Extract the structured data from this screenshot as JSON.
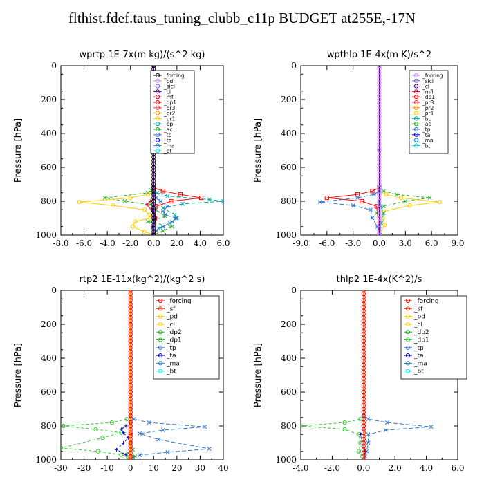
{
  "title": "flthist.fdef.taus_tuning_clubb_c11p  BUDGET at255E,-17N",
  "chart_data": [
    {
      "type": "line",
      "title": "wprtp  1E-7x(m kg)/(s^2 kg)",
      "ylabel": "Pressure [hPa]",
      "xlim": [
        -8,
        6
      ],
      "ylim": [
        1000,
        0
      ],
      "xticks": [
        "-8.0",
        "-6.0",
        "-4.0",
        "-2.0",
        "0.0",
        "2.0",
        "4.0",
        "6.0"
      ],
      "xtick_values": [
        -8,
        -6,
        -4,
        -2,
        0,
        2,
        4,
        6
      ],
      "yticks": [
        "0",
        "200",
        "400",
        "600",
        "800",
        "1000"
      ],
      "ytick_values": [
        0,
        200,
        400,
        600,
        800,
        1000
      ],
      "legend": [
        "_forcing",
        "_pd",
        "_sicl",
        "_cl",
        "_mfl",
        "_dp1",
        "_pr3",
        "_pr2",
        "_pr1",
        "_bp",
        "_ac",
        "_tp",
        "_ta",
        "_ma",
        "_bt"
      ],
      "series": [
        {
          "name": "_forcing",
          "color": "#000000",
          "marker": "o",
          "dash": "",
          "x": [
            0,
            0,
            0,
            0,
            0,
            0,
            0,
            0,
            0,
            0,
            0,
            0,
            0
          ],
          "y": [
            0,
            100,
            200,
            300,
            400,
            500,
            600,
            700,
            750,
            800,
            850,
            900,
            1000
          ]
        },
        {
          "name": "_ac",
          "color": "#22aa22",
          "marker": "x",
          "dash": "4,3",
          "x": [
            0,
            -0.2,
            -0.5,
            -4.2,
            -2.5,
            -0.3,
            0.2,
            1.0,
            -0.5,
            1.6,
            0.8,
            0.0
          ],
          "y": [
            720,
            735,
            750,
            780,
            800,
            820,
            850,
            890,
            920,
            950,
            975,
            1000
          ]
        },
        {
          "name": "_pr1",
          "color": "#ffcc00",
          "marker": "o",
          "dash": "",
          "x": [
            0,
            -0.5,
            -2.0,
            -6.4,
            -3.5,
            -0.8,
            -0.4,
            -0.3,
            -1.6,
            -1.8,
            -0.8,
            0.1
          ],
          "y": [
            740,
            760,
            780,
            805,
            825,
            850,
            880,
            900,
            920,
            950,
            980,
            1000
          ]
        },
        {
          "name": "_bp",
          "color": "#00aaaa",
          "marker": "x",
          "dash": "6,3",
          "x": [
            0,
            0.3,
            1.2,
            4.8,
            6.0,
            2.5,
            0.8,
            1.8,
            2.0,
            1.4,
            0.4,
            0.0
          ],
          "y": [
            730,
            750,
            770,
            790,
            800,
            815,
            840,
            880,
            900,
            930,
            960,
            1000
          ]
        },
        {
          "name": "_dp1",
          "color": "#ff0000",
          "marker": "s",
          "dash": "",
          "x": [
            0,
            0.8,
            2.3,
            4.1,
            1.5,
            0.2,
            0.1,
            0.0
          ],
          "y": [
            720,
            740,
            760,
            780,
            800,
            830,
            900,
            1000
          ]
        },
        {
          "name": "_tp",
          "color": "#3377cc",
          "marker": "*",
          "dash": "6,3",
          "x": [
            0,
            0.2,
            0.6,
            1.2,
            0.8,
            1.0,
            1.9,
            1.6,
            0.8,
            0.2,
            0.0
          ],
          "y": [
            760,
            780,
            800,
            830,
            860,
            880,
            900,
            920,
            950,
            975,
            1000
          ]
        },
        {
          "name": "_mfl",
          "color": "#cc0033",
          "marker": "+",
          "dash": "",
          "x": [
            0,
            -0.3,
            -0.6,
            -0.2,
            0.2,
            0.0,
            0.0
          ],
          "y": [
            790,
            800,
            820,
            850,
            900,
            950,
            1000
          ]
        },
        {
          "name": "_pd",
          "color": "#cc88ff",
          "marker": "o",
          "dash": "",
          "x": [
            0,
            0,
            0
          ],
          "y": [
            0,
            500,
            1000
          ]
        },
        {
          "name": "_sicl",
          "color": "#7766cc",
          "marker": "x",
          "dash": "",
          "x": [
            0,
            0,
            0
          ],
          "y": [
            0,
            500,
            1000
          ]
        },
        {
          "name": "_cl",
          "color": "#550088",
          "marker": "o",
          "dash": "",
          "x": [
            0,
            0,
            0
          ],
          "y": [
            0,
            500,
            1000
          ]
        },
        {
          "name": "_ta",
          "color": "#0000cc",
          "marker": "+",
          "dash": "3,3",
          "x": [
            0,
            0.1,
            -0.1,
            0.0
          ],
          "y": [
            850,
            900,
            950,
            1000
          ]
        }
      ]
    },
    {
      "type": "line",
      "title": "wpthlp  1E-4x(m K)/s^2",
      "ylabel": "Pressure [hPa]",
      "xlim": [
        -9,
        9
      ],
      "ylim": [
        1000,
        0
      ],
      "xticks": [
        "-9.0",
        "-6.0",
        "-3.0",
        "0.0",
        "3.0",
        "6.0",
        "9.0"
      ],
      "xtick_values": [
        -9,
        -6,
        -3,
        0,
        3,
        6,
        9
      ],
      "yticks": [
        "0",
        "200",
        "400",
        "600",
        "800",
        "1000"
      ],
      "ytick_values": [
        0,
        200,
        400,
        600,
        800,
        1000
      ],
      "legend": [
        "_forcing",
        "_sicl",
        "_cl",
        "_mfl",
        "_dp1",
        "_pr3",
        "_pr2",
        "_pr1",
        "_bp",
        "_ac",
        "_tp",
        "_ta",
        "_ma",
        "_bt"
      ],
      "series": [
        {
          "name": "_forcing",
          "color": "#cc88ff",
          "marker": "o",
          "dash": "",
          "x": [
            0,
            0,
            0,
            0,
            0,
            0,
            0,
            0,
            0,
            0,
            0,
            0
          ],
          "y": [
            0,
            100,
            200,
            300,
            400,
            500,
            600,
            700,
            750,
            800,
            900,
            1000
          ]
        },
        {
          "name": "_ac",
          "color": "#22aa22",
          "marker": "x",
          "dash": "4,3",
          "x": [
            0,
            0.5,
            2.0,
            5.8,
            3.0,
            0.5,
            -0.3,
            0.2,
            0.0
          ],
          "y": [
            720,
            740,
            760,
            780,
            800,
            830,
            870,
            930,
            1000
          ]
        },
        {
          "name": "_pr1",
          "color": "#ffcc00",
          "marker": "o",
          "dash": "",
          "x": [
            0,
            0.8,
            2.5,
            6.9,
            3.5,
            0.5,
            0.4,
            0.6,
            0.0
          ],
          "y": [
            740,
            760,
            780,
            805,
            825,
            860,
            900,
            940,
            1000
          ]
        },
        {
          "name": "_dp1",
          "color": "#ff0000",
          "marker": "s",
          "dash": "",
          "x": [
            0,
            -0.8,
            -2.5,
            -6.0,
            -2.0,
            -0.3,
            0.0
          ],
          "y": [
            720,
            740,
            760,
            780,
            800,
            830,
            1000
          ]
        },
        {
          "name": "_tp",
          "color": "#3377cc",
          "marker": "*",
          "dash": "6,3",
          "x": [
            0,
            -0.6,
            -2.5,
            -6.8,
            -3.0,
            -1.0,
            -0.8,
            -0.2,
            0.0
          ],
          "y": [
            740,
            760,
            780,
            805,
            825,
            850,
            900,
            950,
            1000
          ]
        },
        {
          "name": "_bp",
          "color": "#00aaaa",
          "marker": "x",
          "dash": "6,3",
          "x": [
            0,
            0.2,
            0.5,
            0.2,
            0.0
          ],
          "y": [
            800,
            830,
            870,
            930,
            1000
          ]
        },
        {
          "name": "_sicl",
          "color": "#7766cc",
          "marker": "x",
          "dash": "",
          "x": [
            0,
            0,
            0
          ],
          "y": [
            0,
            500,
            1000
          ]
        },
        {
          "name": "_cl",
          "color": "#550088",
          "marker": "o",
          "dash": "",
          "x": [
            0,
            0,
            0
          ],
          "y": [
            0,
            500,
            1000
          ]
        }
      ]
    },
    {
      "type": "line",
      "title": "rtp2  1E-11x(kg^2)/(kg^2 s)",
      "ylabel": "Pressure [hPa]",
      "xlim": [
        -30,
        40
      ],
      "ylim": [
        1000,
        0
      ],
      "xticks": [
        "-30",
        "-20",
        "-10",
        "0",
        "10",
        "20",
        "30",
        "40"
      ],
      "xtick_values": [
        -30,
        -20,
        -10,
        0,
        10,
        20,
        30,
        40
      ],
      "yticks": [
        "0",
        "200",
        "400",
        "600",
        "800",
        "1000"
      ],
      "ytick_values": [
        0,
        200,
        400,
        600,
        800,
        1000
      ],
      "legend": [
        "_forcing",
        "_sf",
        "_pd",
        "_cl",
        "_dp2",
        "_dp1",
        "_tp",
        "_ta",
        "_ma",
        "_bt"
      ],
      "series": [
        {
          "name": "_dp1",
          "color": "#33cc33",
          "marker": "o",
          "dash": "4,3",
          "x": [
            0,
            -1.5,
            -8,
            -29,
            -15,
            -4,
            -12,
            -30,
            -14,
            -4,
            -1,
            0
          ],
          "y": [
            740,
            760,
            780,
            800,
            820,
            840,
            870,
            930,
            950,
            970,
            985,
            1000
          ]
        },
        {
          "name": "_tp",
          "color": "#3377cc",
          "marker": "x",
          "dash": "6,3",
          "x": [
            0,
            1.5,
            8,
            32,
            14,
            4,
            12,
            34,
            16,
            4,
            1,
            0
          ],
          "y": [
            740,
            760,
            780,
            805,
            825,
            845,
            880,
            935,
            955,
            972,
            987,
            1000
          ]
        },
        {
          "name": "_ta",
          "color": "#0000cc",
          "marker": "+",
          "dash": "3,3",
          "x": [
            0,
            -2,
            -4,
            -3,
            -1,
            -3,
            -6,
            -2,
            0
          ],
          "y": [
            780,
            800,
            820,
            840,
            870,
            900,
            940,
            970,
            1000
          ]
        },
        {
          "name": "_dp2",
          "color": "#22aa22",
          "marker": "x",
          "dash": "3,2",
          "x": [
            0,
            1,
            -1,
            2,
            0
          ],
          "y": [
            900,
            940,
            960,
            980,
            1000
          ]
        },
        {
          "name": "_forcing",
          "color": "#ff0000",
          "marker": "o",
          "dash": "",
          "x": [
            0,
            0,
            0,
            0,
            0,
            0,
            0,
            0,
            0,
            0,
            0,
            0
          ],
          "y": [
            0,
            100,
            200,
            300,
            400,
            500,
            600,
            700,
            800,
            850,
            900,
            1000
          ]
        },
        {
          "name": "_pd",
          "color": "#ffcc00",
          "marker": "o",
          "dash": "",
          "x": [
            0,
            0,
            0
          ],
          "y": [
            0,
            500,
            1000
          ]
        }
      ]
    },
    {
      "type": "line",
      "title": "thlp2  1E-4x(K^2)/s",
      "ylabel": "Pressure [hPa]",
      "xlim": [
        -4,
        6
      ],
      "ylim": [
        1000,
        0
      ],
      "xticks": [
        "-4.0",
        "-2.0",
        "0.0",
        "2.0",
        "4.0",
        "6.0"
      ],
      "xtick_values": [
        -4,
        -2,
        0,
        2,
        4,
        6
      ],
      "yticks": [
        "0",
        "200",
        "400",
        "600",
        "800",
        "1000"
      ],
      "ytick_values": [
        0,
        200,
        400,
        600,
        800,
        1000
      ],
      "legend": [
        "_forcing",
        "_sf",
        "_pd",
        "_cl",
        "_dp2",
        "_dp1",
        "_tp",
        "_ta",
        "_ma",
        "_bt"
      ],
      "series": [
        {
          "name": "_dp1",
          "color": "#33cc33",
          "marker": "o",
          "dash": "4,3",
          "x": [
            0,
            -0.2,
            -1.2,
            -4.0,
            -1.2,
            -0.3,
            -0.2,
            -0.3,
            -0.1,
            0
          ],
          "y": [
            740,
            760,
            780,
            800,
            820,
            850,
            900,
            950,
            980,
            1000
          ]
        },
        {
          "name": "_tp",
          "color": "#3377cc",
          "marker": "x",
          "dash": "6,3",
          "x": [
            0,
            0.3,
            1.5,
            4.3,
            1.4,
            0.3,
            0.3,
            0.2,
            0.1,
            0
          ],
          "y": [
            740,
            760,
            780,
            805,
            825,
            850,
            900,
            950,
            980,
            1000
          ]
        },
        {
          "name": "_ta",
          "color": "#0000cc",
          "marker": "+",
          "dash": "3,3",
          "x": [
            0,
            -0.2,
            -0.1,
            0.1,
            0
          ],
          "y": [
            820,
            850,
            900,
            950,
            1000
          ]
        },
        {
          "name": "_forcing",
          "color": "#ff0000",
          "marker": "o",
          "dash": "",
          "x": [
            0,
            0,
            0,
            0,
            0,
            0,
            0,
            0,
            0,
            0,
            0
          ],
          "y": [
            0,
            100,
            200,
            300,
            400,
            500,
            600,
            700,
            800,
            900,
            1000
          ]
        },
        {
          "name": "_pd",
          "color": "#ffcc00",
          "marker": "o",
          "dash": "",
          "x": [
            0,
            0,
            0
          ],
          "y": [
            0,
            500,
            1000
          ]
        }
      ]
    }
  ]
}
